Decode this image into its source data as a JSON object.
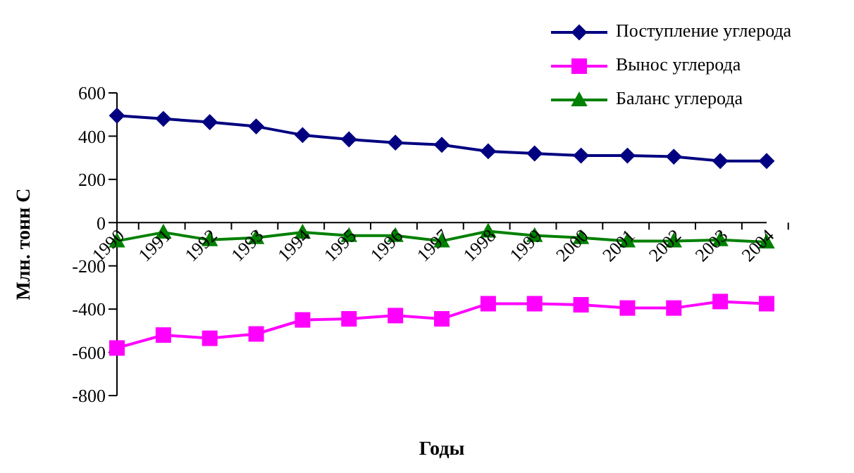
{
  "chart_data": {
    "type": "line",
    "xlabel": "Годы",
    "ylabel": "Млн. тонн С",
    "categories": [
      "1990",
      "1991",
      "1992",
      "1993",
      "1994",
      "1995",
      "1996",
      "1997",
      "1998",
      "1999",
      "2000",
      "2001",
      "2002",
      "2003",
      "2004"
    ],
    "series": [
      {
        "name": "Поступление углерода",
        "color": "#000080",
        "marker": "diamond",
        "values": [
          495,
          480,
          465,
          445,
          405,
          385,
          370,
          360,
          330,
          320,
          310,
          310,
          305,
          285,
          285
        ]
      },
      {
        "name": "Вынос углерода",
        "color": "#ff00ff",
        "marker": "square",
        "values": [
          -580,
          -520,
          -535,
          -515,
          -450,
          -445,
          -430,
          -445,
          -375,
          -375,
          -380,
          -395,
          -395,
          -365,
          -375
        ]
      },
      {
        "name": "Баланс углерода",
        "color": "#008000",
        "marker": "triangle",
        "values": [
          -85,
          -45,
          -80,
          -70,
          -45,
          -60,
          -60,
          -85,
          -40,
          -60,
          -70,
          -85,
          -85,
          -80,
          -90
        ]
      }
    ],
    "ylim": [
      -800,
      600
    ],
    "yticks": [
      -800,
      -600,
      -400,
      -200,
      0,
      200,
      400,
      600
    ],
    "legend": "top right"
  }
}
